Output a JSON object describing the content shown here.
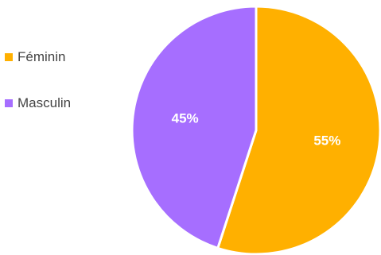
{
  "chart_data": {
    "type": "pie",
    "categories": [
      "Féminin",
      "Masculin"
    ],
    "values": [
      55,
      45
    ],
    "data_labels": [
      "55%",
      "45%"
    ],
    "colors": [
      "#FFB000",
      "#A66EFF"
    ],
    "legend_position": "left",
    "start_angle_deg": 0,
    "direction": "clockwise"
  },
  "legend": {
    "items": [
      {
        "label": "Féminin",
        "color": "#FFB000"
      },
      {
        "label": "Masculin",
        "color": "#A66EFF"
      }
    ]
  }
}
